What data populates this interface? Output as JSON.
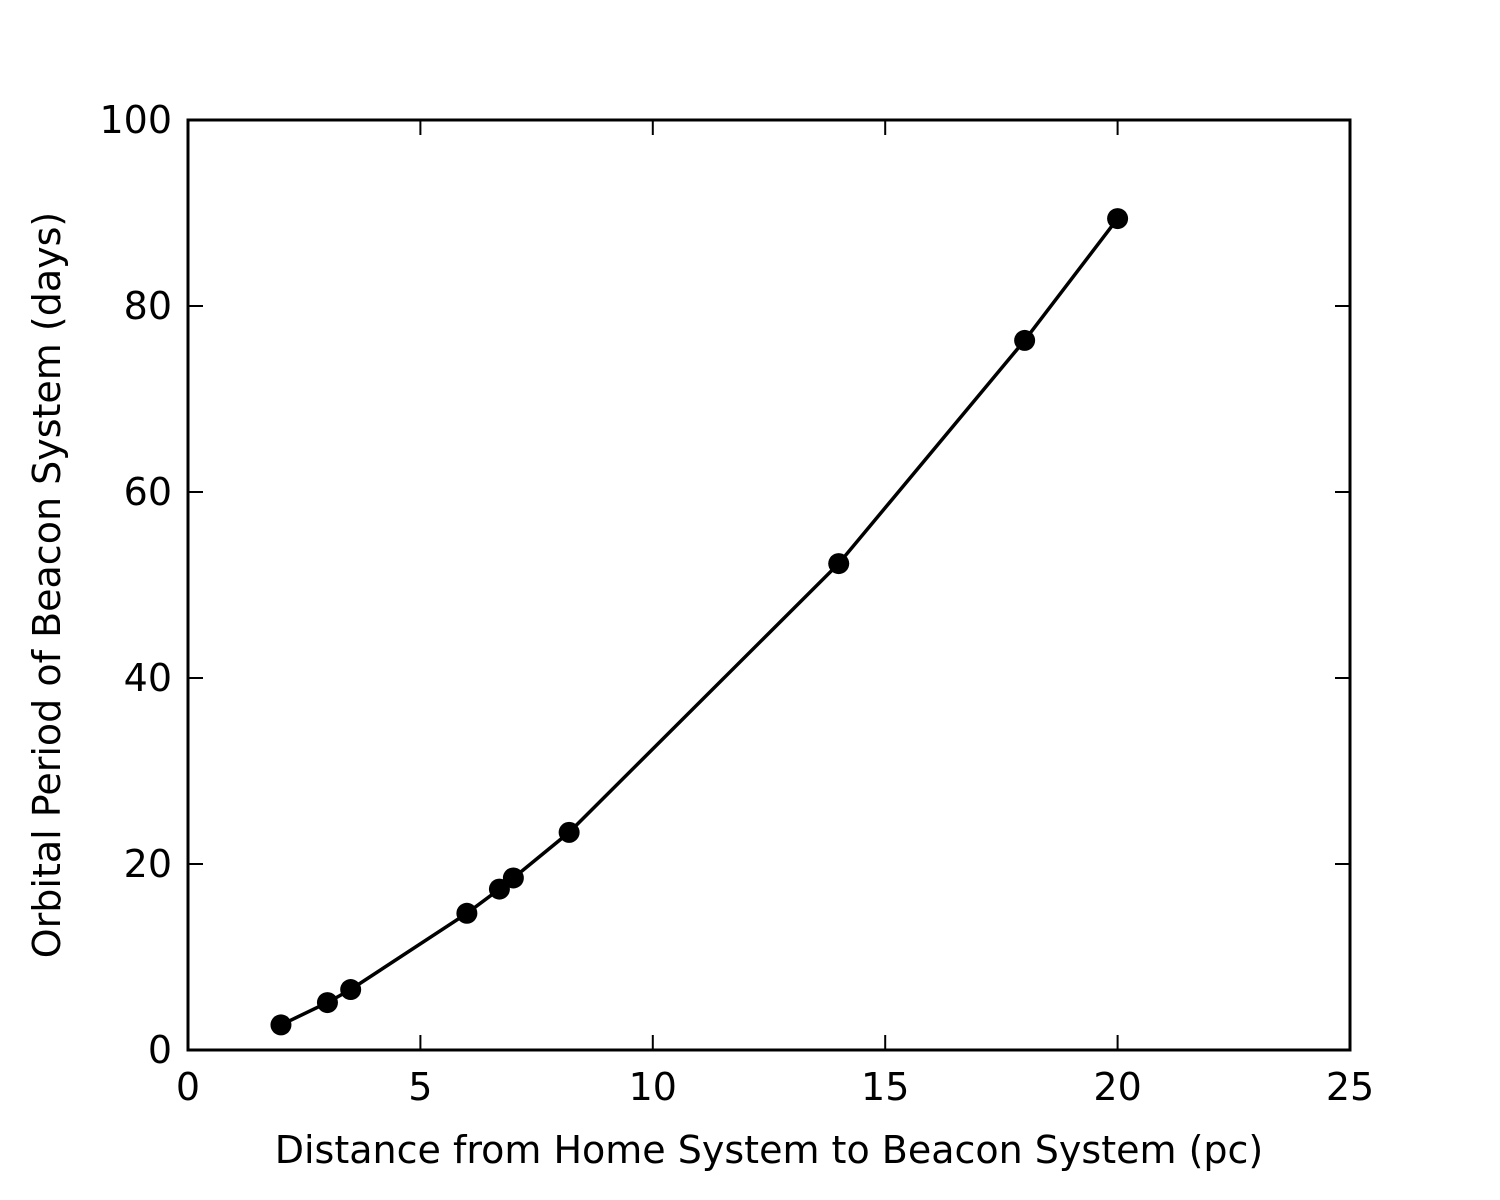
{
  "chart_data": {
    "type": "line",
    "title": "",
    "xlabel": "Distance from Home System to Beacon System (pc)",
    "ylabel": "Orbital Period of Beacon System (days)",
    "xlim": [
      0,
      25
    ],
    "ylim": [
      0,
      100
    ],
    "xticks": [
      0,
      5,
      10,
      15,
      20,
      25
    ],
    "yticks": [
      0,
      20,
      40,
      60,
      80,
      100
    ],
    "xtick_labels": [
      "0",
      "5",
      "10",
      "15",
      "20",
      "25"
    ],
    "ytick_labels": [
      "0",
      "20",
      "40",
      "60",
      "80",
      "100"
    ],
    "grid": false,
    "legend": "none",
    "line_color": "#000000",
    "marker": "circle",
    "series": [
      {
        "x": [
          2.0,
          3.0,
          3.5,
          6.0,
          6.7,
          7.0,
          8.2,
          14.0,
          18.0,
          20.0
        ],
        "y": [
          2.7,
          5.1,
          6.5,
          14.7,
          17.3,
          18.5,
          23.4,
          52.3,
          76.3,
          89.4
        ]
      }
    ]
  }
}
